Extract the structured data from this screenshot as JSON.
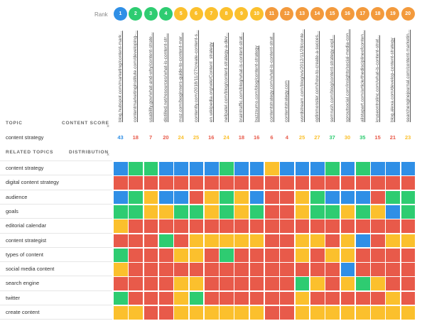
{
  "rank_label": "Rank",
  "ranks": [
    "1",
    "2",
    "3",
    "4",
    "5",
    "6",
    "7",
    "8",
    "9",
    "10",
    "11",
    "12",
    "13",
    "14",
    "15",
    "16",
    "17",
    "18",
    "19",
    "20"
  ],
  "urls": [
    "blog.hubspot.com/marketing/content-mark...",
    "contentmarketinginstitute.com/developing-...",
    "usability.gov/what-and-why/content-strate...",
    "distilled.net/resources/what-is-content-str...",
    "moz.com/beginners-guide-to-content-mar...",
    "contently.com/2018/11/27/create-content-s...",
    "en.wikipedia.org/wiki/Content_strategy",
    "neilpatel.com/blog/content-strategy-a-dev...",
    "braintraffic.com/blog/what-is-content-strat...",
    "buzzsumo.com/blog/content-strategy",
    "contentstrategy.com/what-is-content-strat...",
    "contentstrategy.com",
    "wordstream.com/blog/ws/2012/11/28/conte...",
    "optinmonster.com/how-to-create-a-succes...",
    "semrush.com/blog/content-strategy-expl...",
    "sproutsocial.com/insights/social-media-con...",
    "alistapart.com/article/thedisciplineofconten...",
    "kruseontrolinc.com/what-is-content-strat...",
    "blog.alexa.com/develop-content-strategy",
    "searchenginejournal.com/content-marketin..."
  ],
  "topic_header": "TOPIC",
  "score_header": "CONTENT SCORE",
  "related_header": "RELATED TOPICS",
  "distribution_header": "DISTRIBUTION",
  "close_glyph": "×",
  "main_topic": "content strategy",
  "scores": [
    "43",
    "18",
    "7",
    "20",
    "24",
    "25",
    "16",
    "24",
    "18",
    "16",
    "6",
    "4",
    "25",
    "27",
    "37",
    "30",
    "35",
    "15",
    "21",
    "23"
  ],
  "related_topics": [
    "content strategy",
    "digital content strategy",
    "audience",
    "goals",
    "editorial calendar",
    "content strategist",
    "types of content",
    "social media content",
    "search engine",
    "twitter",
    "create content"
  ],
  "heatmap": [
    "BGGBBBBGBBYBBBGBGBBB",
    "RRRRRRRRRRRRRRRRRRRR",
    "BGYBBRYGYBRRYGBBBRGG",
    "GGYYGGYGYGRRYGGYGYBG",
    "YRRRRRRRRRRRRRRRRRRR",
    "RRRGRYYYYYRRYYRYBRYY",
    "GRRRYYRGRRRRYRYYRRRR",
    "YRRRRRRRRRRRRRRBRRRR",
    "RRRRYYRRRRRRGYRYGYRR",
    "GRRRYGRRRRRRYRRRRRYR",
    "YYRRYYYYYYRRYYYYYYYY"
  ],
  "colors": {
    "blue": "#2f8fe6",
    "green": "#2ecc71",
    "yellow": "#fbc02d",
    "red": "#e85a4a",
    "orange": "#f39a3c"
  },
  "rank_colors": [
    "blue",
    "green",
    "green",
    "green",
    "yellow",
    "yellow",
    "yellow",
    "yellow",
    "yellow",
    "yellow",
    "orange",
    "orange",
    "orange",
    "orange",
    "orange",
    "orange",
    "orange",
    "orange",
    "orange",
    "orange"
  ],
  "score_colors": [
    "blue",
    "red",
    "red",
    "red",
    "yellow",
    "yellow",
    "red",
    "yellow",
    "red",
    "red",
    "red",
    "red",
    "yellow",
    "yellow",
    "green",
    "yellow",
    "green",
    "red",
    "red",
    "yellow"
  ]
}
